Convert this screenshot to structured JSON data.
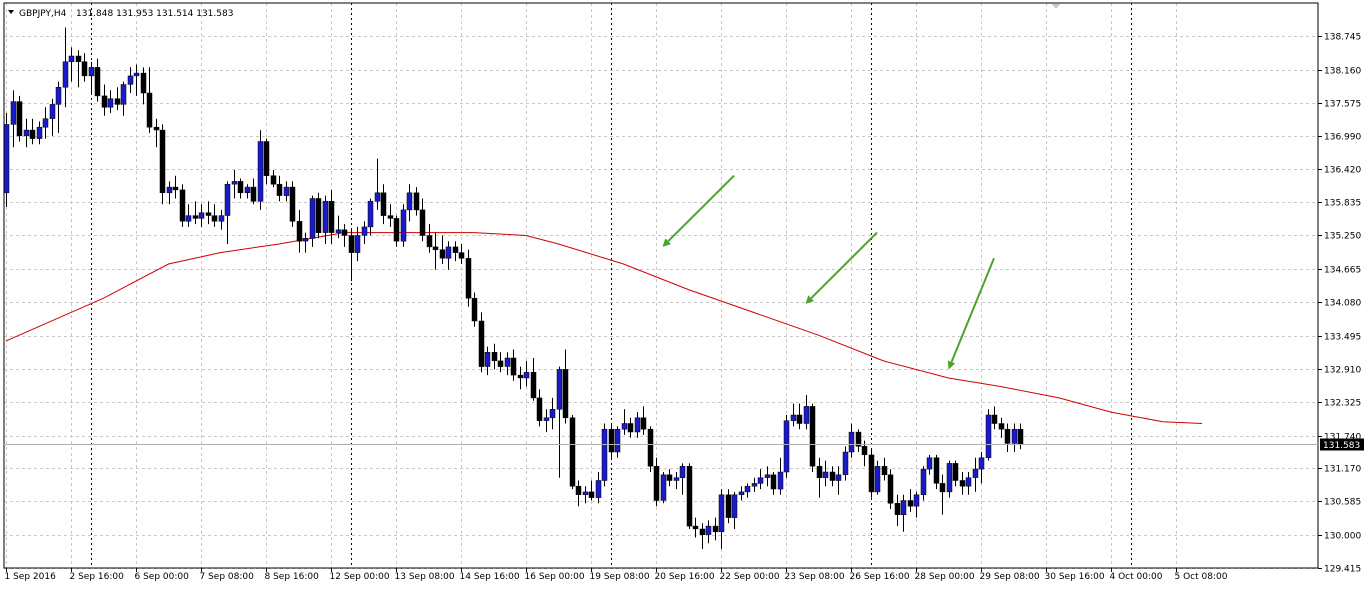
{
  "header": {
    "symbol": "GBPJPY,H4",
    "ohlc": "131.848 131.953 131.514 131.583"
  },
  "current_price": "131.583",
  "colors": {
    "bull": "#1a1ac8",
    "bear": "#000000",
    "ma": "#d00000",
    "arrows": "#4aa42c",
    "grid": "#c8c8c8"
  },
  "chart_data": {
    "type": "candlestick",
    "symbol": "GBPJPY",
    "timeframe": "H4",
    "ylim": [
      129.415,
      139.33
    ],
    "y_ticks": [
      "138.745",
      "138.160",
      "137.575",
      "136.990",
      "136.420",
      "135.835",
      "135.250",
      "134.665",
      "134.080",
      "133.495",
      "132.910",
      "132.325",
      "131.740",
      "131.170",
      "130.585",
      "130.000",
      "129.415"
    ],
    "x_labels": [
      {
        "i": 0,
        "label": "1 Sep 2016"
      },
      {
        "i": 10,
        "label": "2 Sep 16:00"
      },
      {
        "i": 20,
        "label": "6 Sep 00:00"
      },
      {
        "i": 30,
        "label": "7 Sep 08:00"
      },
      {
        "i": 40,
        "label": "8 Sep 16:00"
      },
      {
        "i": 50,
        "label": "12 Sep 00:00"
      },
      {
        "i": 60,
        "label": "13 Sep 08:00"
      },
      {
        "i": 70,
        "label": "14 Sep 16:00"
      },
      {
        "i": 80,
        "label": "16 Sep 00:00"
      },
      {
        "i": 90,
        "label": "19 Sep 08:00"
      },
      {
        "i": 100,
        "label": "20 Sep 16:00"
      },
      {
        "i": 110,
        "label": "22 Sep 00:00"
      },
      {
        "i": 120,
        "label": "23 Sep 08:00"
      },
      {
        "i": 130,
        "label": "26 Sep 16:00"
      },
      {
        "i": 140,
        "label": "28 Sep 00:00"
      },
      {
        "i": 150,
        "label": "29 Sep 08:00"
      },
      {
        "i": 160,
        "label": "30 Sep 16:00"
      },
      {
        "i": 170,
        "label": "4 Oct 00:00"
      },
      {
        "i": 180,
        "label": "5 Oct 08:00"
      }
    ],
    "period_separators": [
      13,
      53,
      93,
      133,
      173
    ],
    "candles": [
      [
        136.0,
        137.4,
        135.75,
        137.2
      ],
      [
        137.2,
        137.8,
        136.8,
        137.6
      ],
      [
        137.6,
        137.7,
        136.9,
        137.0
      ],
      [
        137.0,
        137.3,
        136.8,
        137.1
      ],
      [
        137.1,
        137.3,
        136.85,
        136.95
      ],
      [
        136.95,
        137.25,
        136.85,
        137.15
      ],
      [
        137.15,
        137.5,
        136.95,
        137.3
      ],
      [
        137.3,
        137.65,
        137.0,
        137.55
      ],
      [
        137.55,
        137.95,
        137.05,
        137.85
      ],
      [
        137.85,
        138.9,
        137.5,
        138.3
      ],
      [
        138.3,
        138.55,
        137.95,
        138.4
      ],
      [
        138.4,
        138.5,
        137.85,
        138.3
      ],
      [
        138.3,
        138.45,
        137.95,
        138.05
      ],
      [
        138.05,
        138.3,
        137.75,
        138.2
      ],
      [
        138.2,
        138.35,
        137.6,
        137.7
      ],
      [
        137.7,
        137.9,
        137.35,
        137.5
      ],
      [
        137.5,
        137.8,
        137.4,
        137.65
      ],
      [
        137.65,
        137.85,
        137.45,
        137.55
      ],
      [
        137.55,
        137.95,
        137.35,
        137.9
      ],
      [
        137.9,
        138.2,
        137.75,
        138.05
      ],
      [
        138.05,
        138.25,
        137.7,
        138.1
      ],
      [
        138.1,
        138.2,
        137.55,
        137.75
      ],
      [
        137.75,
        138.2,
        137.05,
        137.15
      ],
      [
        137.15,
        137.3,
        136.8,
        137.1
      ],
      [
        137.1,
        137.2,
        135.8,
        136.0
      ],
      [
        136.0,
        136.2,
        135.8,
        136.1
      ],
      [
        136.1,
        136.3,
        135.9,
        136.05
      ],
      [
        136.05,
        136.15,
        135.4,
        135.5
      ],
      [
        135.5,
        135.8,
        135.4,
        135.6
      ],
      [
        135.6,
        135.85,
        135.45,
        135.55
      ],
      [
        135.55,
        135.8,
        135.4,
        135.65
      ],
      [
        135.65,
        135.85,
        135.45,
        135.6
      ],
      [
        135.6,
        135.8,
        135.4,
        135.5
      ],
      [
        135.5,
        135.7,
        135.35,
        135.6
      ],
      [
        135.6,
        136.2,
        135.1,
        136.15
      ],
      [
        136.15,
        136.4,
        135.9,
        136.2
      ],
      [
        136.2,
        136.25,
        135.9,
        136.0
      ],
      [
        136.0,
        136.15,
        135.9,
        136.1
      ],
      [
        136.1,
        136.25,
        135.8,
        135.85
      ],
      [
        135.85,
        137.1,
        135.7,
        136.9
      ],
      [
        136.9,
        136.95,
        136.15,
        136.3
      ],
      [
        136.3,
        136.4,
        136.1,
        136.15
      ],
      [
        136.15,
        136.3,
        135.85,
        135.95
      ],
      [
        135.95,
        136.2,
        135.85,
        136.1
      ],
      [
        136.1,
        136.2,
        135.4,
        135.5
      ],
      [
        135.5,
        135.7,
        134.95,
        135.15
      ],
      [
        135.15,
        135.3,
        134.95,
        135.2
      ],
      [
        135.2,
        135.95,
        135.05,
        135.9
      ],
      [
        135.9,
        136.0,
        135.2,
        135.3
      ],
      [
        135.3,
        135.95,
        135.1,
        135.85
      ],
      [
        135.85,
        136.05,
        135.1,
        135.3
      ],
      [
        135.3,
        135.6,
        135.2,
        135.35
      ],
      [
        135.35,
        135.45,
        135.05,
        135.25
      ],
      [
        135.25,
        135.35,
        134.45,
        134.95
      ],
      [
        134.95,
        135.4,
        134.8,
        135.25
      ],
      [
        135.25,
        135.5,
        135.1,
        135.4
      ],
      [
        135.4,
        135.9,
        135.25,
        135.85
      ],
      [
        135.85,
        136.6,
        135.7,
        136.0
      ],
      [
        136.0,
        136.15,
        135.45,
        135.6
      ],
      [
        135.6,
        135.8,
        135.4,
        135.55
      ],
      [
        135.55,
        135.6,
        135.05,
        135.15
      ],
      [
        135.15,
        135.8,
        135.05,
        135.7
      ],
      [
        135.7,
        136.15,
        135.5,
        136.0
      ],
      [
        136.0,
        136.1,
        135.6,
        135.7
      ],
      [
        135.7,
        135.9,
        135.15,
        135.25
      ],
      [
        135.25,
        135.45,
        134.95,
        135.05
      ],
      [
        135.05,
        135.3,
        134.65,
        135.0
      ],
      [
        135.0,
        135.25,
        134.75,
        134.85
      ],
      [
        134.85,
        135.15,
        134.65,
        135.05
      ],
      [
        135.05,
        135.15,
        134.8,
        134.95
      ],
      [
        134.95,
        135.1,
        134.75,
        134.85
      ],
      [
        134.85,
        135.0,
        134.0,
        134.15
      ],
      [
        134.15,
        134.25,
        133.65,
        133.75
      ],
      [
        133.75,
        133.9,
        132.85,
        132.95
      ],
      [
        132.95,
        133.3,
        132.8,
        133.2
      ],
      [
        133.2,
        133.35,
        132.9,
        133.05
      ],
      [
        133.05,
        133.2,
        132.85,
        132.95
      ],
      [
        132.95,
        133.2,
        132.8,
        133.1
      ],
      [
        133.1,
        133.25,
        132.7,
        132.8
      ],
      [
        132.8,
        132.95,
        132.55,
        132.75
      ],
      [
        132.75,
        133.05,
        132.6,
        132.85
      ],
      [
        132.85,
        133.1,
        132.35,
        132.4
      ],
      [
        132.4,
        132.55,
        131.9,
        132.0
      ],
      [
        132.0,
        132.2,
        131.8,
        132.05
      ],
      [
        132.05,
        132.4,
        131.85,
        132.2
      ],
      [
        132.2,
        132.95,
        131.0,
        132.9
      ],
      [
        132.9,
        133.25,
        131.95,
        132.05
      ],
      [
        132.05,
        132.1,
        130.8,
        130.85
      ],
      [
        130.85,
        130.95,
        130.5,
        130.7
      ],
      [
        130.7,
        130.85,
        130.55,
        130.75
      ],
      [
        130.75,
        130.95,
        130.6,
        130.65
      ],
      [
        130.65,
        131.1,
        130.55,
        130.95
      ],
      [
        130.95,
        131.95,
        130.85,
        131.85
      ],
      [
        131.85,
        131.95,
        131.35,
        131.45
      ],
      [
        131.45,
        131.9,
        131.35,
        131.85
      ],
      [
        131.85,
        132.2,
        131.75,
        131.95
      ],
      [
        131.95,
        132.05,
        131.7,
        131.8
      ],
      [
        131.8,
        132.15,
        131.7,
        132.05
      ],
      [
        132.05,
        132.25,
        131.75,
        131.85
      ],
      [
        131.85,
        131.9,
        131.1,
        131.2
      ],
      [
        131.2,
        131.35,
        130.5,
        130.6
      ],
      [
        130.6,
        131.1,
        130.55,
        131.05
      ],
      [
        131.05,
        131.15,
        130.85,
        130.95
      ],
      [
        130.95,
        131.1,
        130.8,
        131.0
      ],
      [
        131.0,
        131.25,
        130.7,
        131.2
      ],
      [
        131.2,
        131.25,
        130.1,
        130.15
      ],
      [
        130.15,
        130.3,
        129.95,
        130.1
      ],
      [
        130.1,
        130.2,
        129.75,
        130.0
      ],
      [
        130.0,
        130.25,
        129.85,
        130.15
      ],
      [
        130.15,
        130.3,
        129.9,
        130.05
      ],
      [
        130.05,
        130.8,
        129.75,
        130.7
      ],
      [
        130.7,
        130.8,
        130.2,
        130.3
      ],
      [
        130.3,
        130.75,
        130.1,
        130.7
      ],
      [
        130.7,
        130.85,
        130.6,
        130.75
      ],
      [
        130.75,
        130.9,
        130.65,
        130.85
      ],
      [
        130.85,
        131.0,
        130.75,
        130.9
      ],
      [
        130.9,
        131.15,
        130.8,
        131.0
      ],
      [
        131.0,
        131.2,
        130.85,
        131.05
      ],
      [
        131.05,
        131.1,
        130.7,
        130.8
      ],
      [
        130.8,
        131.35,
        130.7,
        131.1
      ],
      [
        131.1,
        132.1,
        131.0,
        132.0
      ],
      [
        132.0,
        132.3,
        131.9,
        132.1
      ],
      [
        132.1,
        132.3,
        131.85,
        131.95
      ],
      [
        131.95,
        132.45,
        131.85,
        132.25
      ],
      [
        132.25,
        132.3,
        131.1,
        131.2
      ],
      [
        131.2,
        131.35,
        130.65,
        131.0
      ],
      [
        131.0,
        131.3,
        130.85,
        131.1
      ],
      [
        131.1,
        131.2,
        130.85,
        130.95
      ],
      [
        130.95,
        131.2,
        130.7,
        131.05
      ],
      [
        131.05,
        131.55,
        130.95,
        131.45
      ],
      [
        131.45,
        131.95,
        131.35,
        131.8
      ],
      [
        131.8,
        131.85,
        131.45,
        131.55
      ],
      [
        131.55,
        131.65,
        131.2,
        131.4
      ],
      [
        131.4,
        131.5,
        130.65,
        130.75
      ],
      [
        130.75,
        131.3,
        130.7,
        131.2
      ],
      [
        131.2,
        131.35,
        130.95,
        131.05
      ],
      [
        131.05,
        131.15,
        130.45,
        130.55
      ],
      [
        130.55,
        130.7,
        130.15,
        130.35
      ],
      [
        130.35,
        130.7,
        130.05,
        130.6
      ],
      [
        130.6,
        130.8,
        130.4,
        130.5
      ],
      [
        130.5,
        130.75,
        130.3,
        130.7
      ],
      [
        130.7,
        131.2,
        130.6,
        131.15
      ],
      [
        131.15,
        131.4,
        131.05,
        131.35
      ],
      [
        131.35,
        131.4,
        130.8,
        130.9
      ],
      [
        130.9,
        131.05,
        130.35,
        130.75
      ],
      [
        130.75,
        131.3,
        130.65,
        131.25
      ],
      [
        131.25,
        131.3,
        130.85,
        130.95
      ],
      [
        130.95,
        131.1,
        130.7,
        130.85
      ],
      [
        130.85,
        131.1,
        130.7,
        131.0
      ],
      [
        131.0,
        131.35,
        130.75,
        131.15
      ],
      [
        131.15,
        131.45,
        130.9,
        131.35
      ],
      [
        131.35,
        132.2,
        131.3,
        132.1
      ],
      [
        132.1,
        132.25,
        131.85,
        131.95
      ],
      [
        131.95,
        132.05,
        131.7,
        131.85
      ],
      [
        131.85,
        131.95,
        131.45,
        131.6
      ],
      [
        131.6,
        131.95,
        131.45,
        131.85
      ],
      [
        131.85,
        131.95,
        131.5,
        131.58
      ]
    ],
    "ma_period": 100,
    "ma_points": [
      [
        0,
        133.4
      ],
      [
        15,
        134.15
      ],
      [
        25,
        134.75
      ],
      [
        33,
        134.95
      ],
      [
        42,
        135.1
      ],
      [
        52,
        135.3
      ],
      [
        62,
        135.3
      ],
      [
        72,
        135.3
      ],
      [
        80,
        135.25
      ],
      [
        85,
        135.1
      ],
      [
        95,
        134.75
      ],
      [
        105,
        134.3
      ],
      [
        115,
        133.9
      ],
      [
        125,
        133.5
      ],
      [
        135,
        133.05
      ],
      [
        145,
        132.75
      ],
      [
        153,
        132.6
      ],
      [
        162,
        132.4
      ],
      [
        170,
        132.15
      ],
      [
        178,
        131.98
      ],
      [
        184,
        131.95
      ]
    ],
    "annotations": [
      {
        "type": "arrow",
        "from": [
          112,
          136.3
        ],
        "to": [
          101,
          135.05
        ]
      },
      {
        "type": "arrow",
        "from": [
          134,
          135.3
        ],
        "to": [
          123,
          134.05
        ]
      },
      {
        "type": "arrow",
        "from": [
          152,
          134.85
        ],
        "to": [
          145,
          132.9
        ]
      }
    ]
  }
}
